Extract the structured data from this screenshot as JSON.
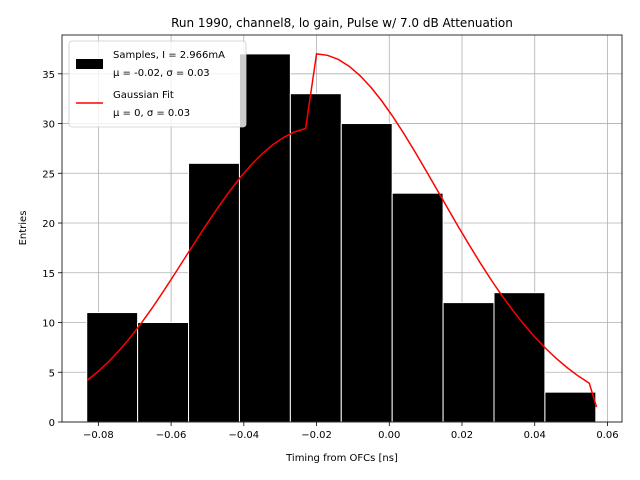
{
  "chart_data": {
    "type": "bar",
    "title": "Run 1990, channel8, lo gain, Pulse w/ 7.0 dB Attenuation",
    "xlabel": "Timing from OFCs [ns]",
    "ylabel": "Entries",
    "xlim": [
      -0.09,
      0.064
    ],
    "ylim": [
      0,
      38.9
    ],
    "grid": true,
    "x_ticks": [
      -0.08,
      -0.06,
      -0.04,
      -0.02,
      0.0,
      0.02,
      0.04,
      0.06
    ],
    "x_tick_labels": [
      "−0.08",
      "−0.06",
      "−0.04",
      "−0.02",
      "0.00",
      "0.02",
      "0.04",
      "0.06"
    ],
    "y_ticks": [
      0,
      5,
      10,
      15,
      20,
      25,
      30,
      35
    ],
    "y_tick_labels": [
      "0",
      "5",
      "10",
      "15",
      "20",
      "25",
      "30",
      "35"
    ],
    "histogram": {
      "name": "Samples",
      "color": "#000000",
      "bin_edges": [
        -0.0832,
        -0.0692,
        -0.0552,
        -0.0412,
        -0.0272,
        -0.0132,
        0.0008,
        0.0148,
        0.0288,
        0.0428,
        0.0568
      ],
      "counts": [
        11,
        10,
        26,
        37,
        33,
        30,
        23,
        12,
        13,
        3
      ]
    },
    "fit": {
      "name": "Gaussian Fit",
      "color": "#ff0000",
      "x": [
        -0.083,
        -0.08,
        -0.077,
        -0.074,
        -0.071,
        -0.068,
        -0.065,
        -0.062,
        -0.059,
        -0.056,
        -0.053,
        -0.05,
        -0.047,
        -0.044,
        -0.041,
        -0.038,
        -0.035,
        -0.032,
        -0.029,
        -0.026,
        -0.023,
        -0.02,
        -0.017,
        -0.014,
        -0.011,
        -0.008,
        -0.005,
        -0.002,
        0.001,
        0.004,
        0.007,
        0.01,
        0.013,
        0.016,
        0.019,
        0.022,
        0.025,
        0.028,
        0.031,
        0.034,
        0.037,
        0.04,
        0.043,
        0.046,
        0.049,
        0.052,
        0.055,
        0.057
      ],
      "y": [
        4.21,
        5.1,
        6.13,
        7.3,
        8.6,
        10.03,
        11.57,
        13.2,
        14.89,
        16.61,
        18.32,
        20.0,
        21.62,
        23.15,
        24.56,
        25.83,
        26.95,
        27.88,
        28.62,
        29.17,
        29.51,
        37.0,
        36.86,
        36.44,
        35.75,
        34.8,
        33.62,
        32.24,
        30.69,
        29.0,
        27.2,
        25.33,
        23.43,
        21.52,
        19.63,
        17.79,
        16.0,
        14.3,
        12.7,
        11.2,
        9.82,
        8.55,
        7.4,
        6.36,
        5.44,
        4.62,
        3.9,
        1.5
      ]
    },
    "legend": {
      "position": "top-left",
      "entries": [
        {
          "line1": "Samples, I = 2.966mA",
          "line2": "μ = -0.02, σ = 0.03",
          "marker": "patch",
          "color": "#000000"
        },
        {
          "line1": "Gaussian Fit",
          "line2": "μ = 0, σ = 0.03",
          "marker": "line",
          "color": "#ff0000"
        }
      ]
    }
  }
}
